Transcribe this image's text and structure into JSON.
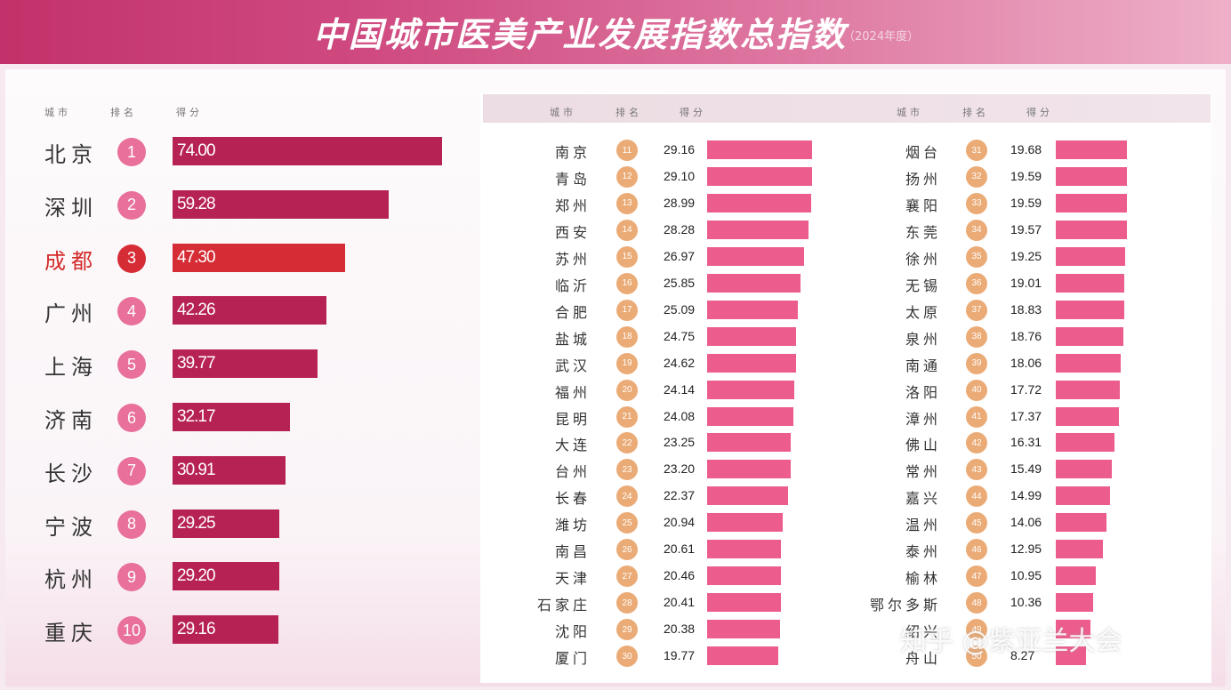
{
  "title": "中国城市医美产业发展指数总指数",
  "subtitle": "（2024年度）",
  "watermark": "知乎 @紫亚兰大会",
  "colors": {
    "header_start": "#c2326a",
    "left_bar": "#b72254",
    "highlight_bar": "#d62c35",
    "right_bar": "#ec5d8e",
    "rank_circle_left": "#e8709a",
    "rank_circle_right": "#e9a368"
  },
  "column_headers": {
    "city": "城市",
    "rank": "排名",
    "score": "得分"
  },
  "chart_data": [
    {
      "type": "bar",
      "orientation": "horizontal",
      "highlight": "成都",
      "categories": [
        "北京",
        "深圳",
        "成都",
        "广州",
        "上海",
        "济南",
        "长沙",
        "宁波",
        "杭州",
        "重庆"
      ],
      "ranks": [
        "1",
        "2",
        "3",
        "4",
        "5",
        "6",
        "7",
        "8",
        "9",
        "10"
      ],
      "values": [
        74.0,
        59.28,
        47.3,
        42.26,
        39.77,
        32.17,
        30.91,
        29.25,
        29.2,
        29.16
      ],
      "labels": [
        "74.00",
        "59.28",
        "47.30",
        "42.26",
        "39.77",
        "32.17",
        "30.91",
        "29.25",
        "29.20",
        "29.16"
      ]
    },
    {
      "type": "bar",
      "orientation": "horizontal",
      "categories": [
        "南京",
        "青岛",
        "郑州",
        "西安",
        "苏州",
        "临沂",
        "合肥",
        "盐城",
        "武汉",
        "福州",
        "昆明",
        "大连",
        "台州",
        "长春",
        "潍坊",
        "南昌",
        "天津",
        "石家庄",
        "沈阳",
        "厦门"
      ],
      "ranks": [
        "11",
        "12",
        "13",
        "14",
        "15",
        "16",
        "17",
        "18",
        "19",
        "20",
        "21",
        "22",
        "23",
        "24",
        "25",
        "26",
        "27",
        "28",
        "29",
        "30"
      ],
      "values": [
        29.16,
        29.1,
        28.99,
        28.28,
        26.97,
        25.85,
        25.09,
        24.75,
        24.62,
        24.14,
        24.08,
        23.25,
        23.2,
        22.37,
        20.94,
        20.61,
        20.46,
        20.41,
        20.38,
        19.77
      ],
      "labels": [
        "29.16",
        "29.10",
        "28.99",
        "28.28",
        "26.97",
        "25.85",
        "25.09",
        "24.75",
        "24.62",
        "24.14",
        "24.08",
        "23.25",
        "23.20",
        "22.37",
        "20.94",
        "20.61",
        "20.46",
        "20.41",
        "20.38",
        "19.77"
      ]
    },
    {
      "type": "bar",
      "orientation": "horizontal",
      "categories": [
        "烟台",
        "扬州",
        "襄阳",
        "东莞",
        "徐州",
        "无锡",
        "太原",
        "泉州",
        "南通",
        "洛阳",
        "漳州",
        "佛山",
        "常州",
        "嘉兴",
        "温州",
        "泰州",
        "榆林",
        "鄂尔多斯",
        "绍兴",
        "舟山"
      ],
      "ranks": [
        "31",
        "32",
        "33",
        "34",
        "35",
        "36",
        "37",
        "38",
        "39",
        "40",
        "41",
        "42",
        "43",
        "44",
        "45",
        "46",
        "47",
        "48",
        "49",
        "50"
      ],
      "values": [
        19.68,
        19.59,
        19.59,
        19.57,
        19.25,
        19.01,
        18.83,
        18.76,
        18.06,
        17.72,
        17.37,
        16.31,
        15.49,
        14.99,
        14.06,
        12.95,
        10.95,
        10.36,
        9.6,
        8.27
      ],
      "labels": [
        "19.68",
        "19.59",
        "19.59",
        "19.57",
        "19.25",
        "19.01",
        "18.83",
        "18.76",
        "18.06",
        "17.72",
        "17.37",
        "16.31",
        "15.49",
        "14.99",
        "14.06",
        "12.95",
        "10.95",
        "10.36",
        "",
        "8.27"
      ]
    }
  ]
}
